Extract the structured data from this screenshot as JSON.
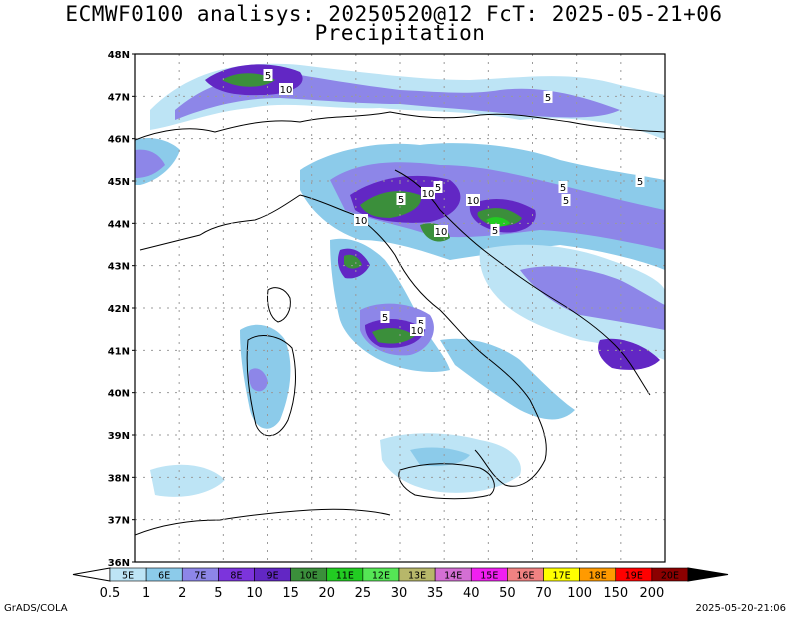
{
  "title": {
    "line1": "ECMWF0100 analisys: 20250520@12 FcT: 2025-05-21+06",
    "line2": "Precipitation"
  },
  "map": {
    "lat_labels": [
      "48N",
      "47N",
      "46N",
      "45N",
      "44N",
      "43N",
      "42N",
      "41N",
      "40N",
      "39N",
      "38N",
      "37N",
      "36N"
    ],
    "gridlines": "dotted",
    "contour_labels": [
      {
        "text": "5"
      },
      {
        "text": "10"
      },
      {
        "text": "5"
      },
      {
        "text": "5"
      },
      {
        "text": "5"
      },
      {
        "text": "10"
      },
      {
        "text": "5"
      },
      {
        "text": "5"
      },
      {
        "text": "10"
      },
      {
        "text": "5"
      },
      {
        "text": "10"
      },
      {
        "text": "5"
      },
      {
        "text": "10"
      },
      {
        "text": "5"
      },
      {
        "text": "5"
      },
      {
        "text": "10"
      }
    ]
  },
  "colorbar": {
    "lon_labels": [
      "5E",
      "6E",
      "7E",
      "8E",
      "9E",
      "10E",
      "11E",
      "12E",
      "13E",
      "14E",
      "15E",
      "16E",
      "17E",
      "18E",
      "19E",
      "20E"
    ],
    "colors": [
      "#bde4f5",
      "#8ccbea",
      "#8d86e8",
      "#7c34dc",
      "#6227c4",
      "#3b8f3b",
      "#22cc22",
      "#55e655",
      "#b7b76a",
      "#d46fd4",
      "#f01ff0",
      "#f08282",
      "#ffff00",
      "#ff9a00",
      "#ff0000",
      "#8b0000"
    ],
    "levels": [
      "0.5",
      "1",
      "2",
      "5",
      "10",
      "15",
      "20",
      "25",
      "30",
      "35",
      "40",
      "50",
      "70",
      "100",
      "150",
      "200"
    ],
    "left_arrow_color": "#ffffff",
    "right_arrow_color": "#000000"
  },
  "footer": {
    "left": "GrADS/COLA",
    "right": "2025-05-20-21:06"
  }
}
